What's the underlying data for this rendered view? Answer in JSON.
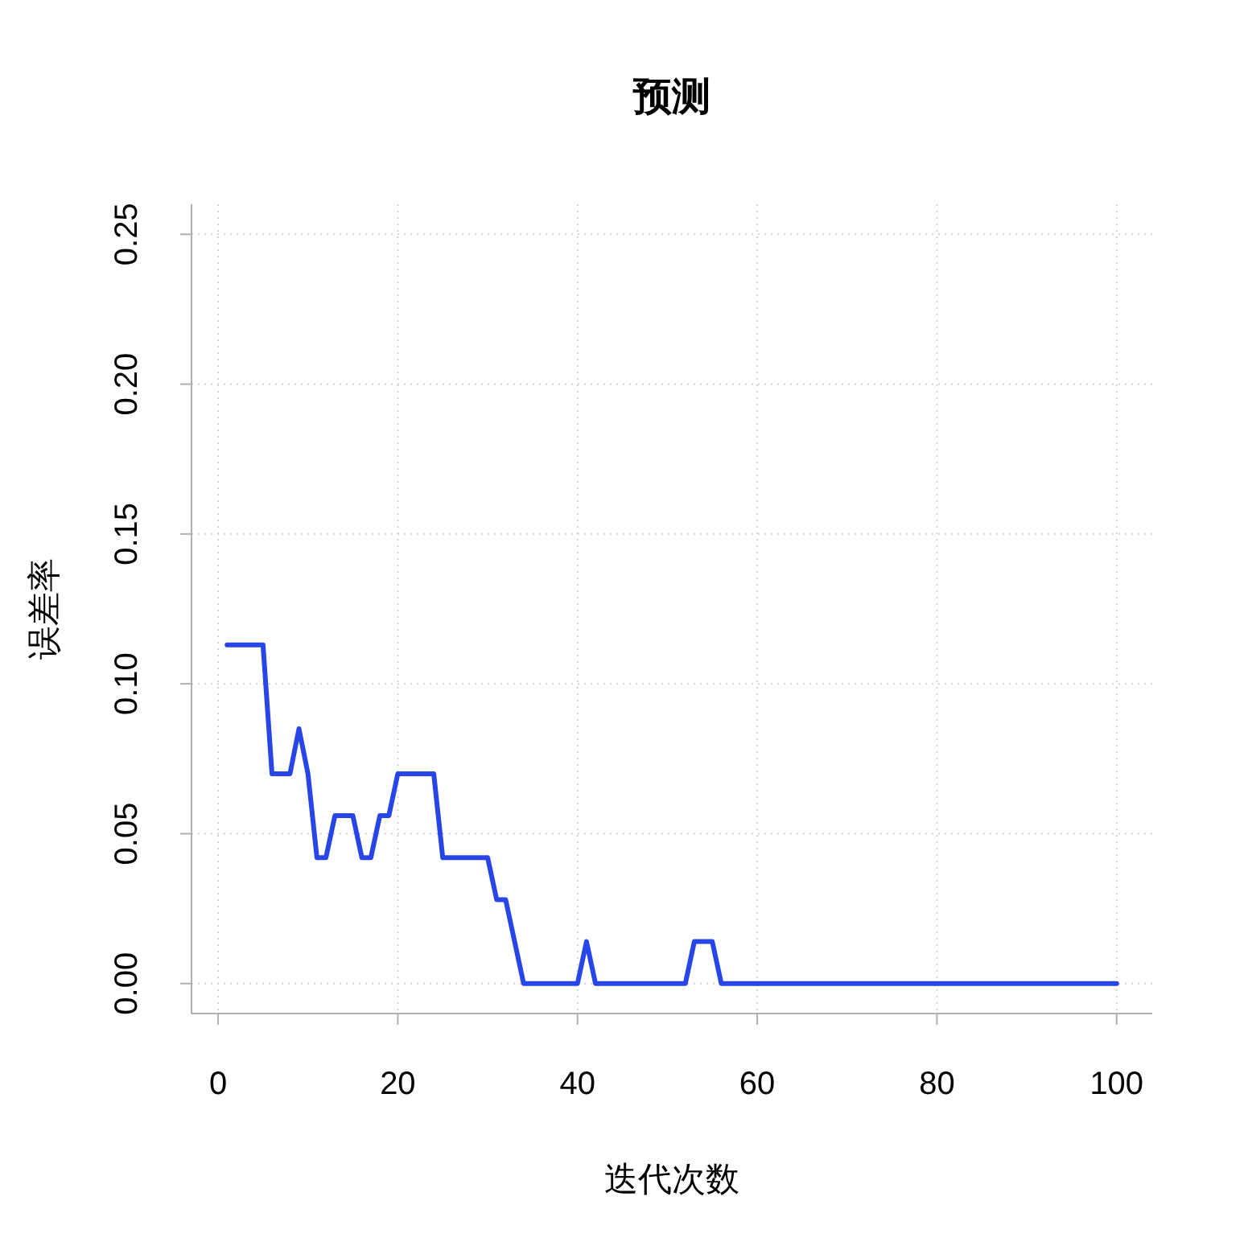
{
  "chart_data": {
    "type": "line",
    "title": "预测",
    "xlabel": "迭代次数",
    "ylabel": "误差率",
    "xlim": [
      -2.96,
      103.96
    ],
    "ylim": [
      -0.01,
      0.26
    ],
    "xticks": [
      0,
      20,
      40,
      60,
      80,
      100
    ],
    "yticks": [
      {
        "value": 0,
        "label": "0.00"
      },
      {
        "value": 0.05,
        "label": "0.05"
      },
      {
        "value": 0.1,
        "label": "0.10"
      },
      {
        "value": 0.15,
        "label": "0.15"
      },
      {
        "value": 0.2,
        "label": "0.20"
      },
      {
        "value": 0.25,
        "label": "0.25"
      }
    ],
    "grid": true,
    "series": [
      {
        "color": "#2846e8",
        "x": [
          1,
          5,
          6,
          8,
          9,
          10,
          11,
          12,
          13,
          15,
          16,
          17,
          18,
          19,
          20,
          24,
          25,
          30,
          31,
          32,
          33,
          34,
          40,
          41,
          42,
          52,
          53,
          55,
          56,
          100
        ],
        "values": [
          0.113,
          0.113,
          0.07,
          0.07,
          0.085,
          0.07,
          0.042,
          0.042,
          0.056,
          0.056,
          0.042,
          0.042,
          0.056,
          0.056,
          0.07,
          0.07,
          0.042,
          0.042,
          0.028,
          0.028,
          0.014,
          0,
          0,
          0.014,
          0,
          0,
          0.014,
          0.014,
          0,
          0
        ]
      }
    ]
  }
}
